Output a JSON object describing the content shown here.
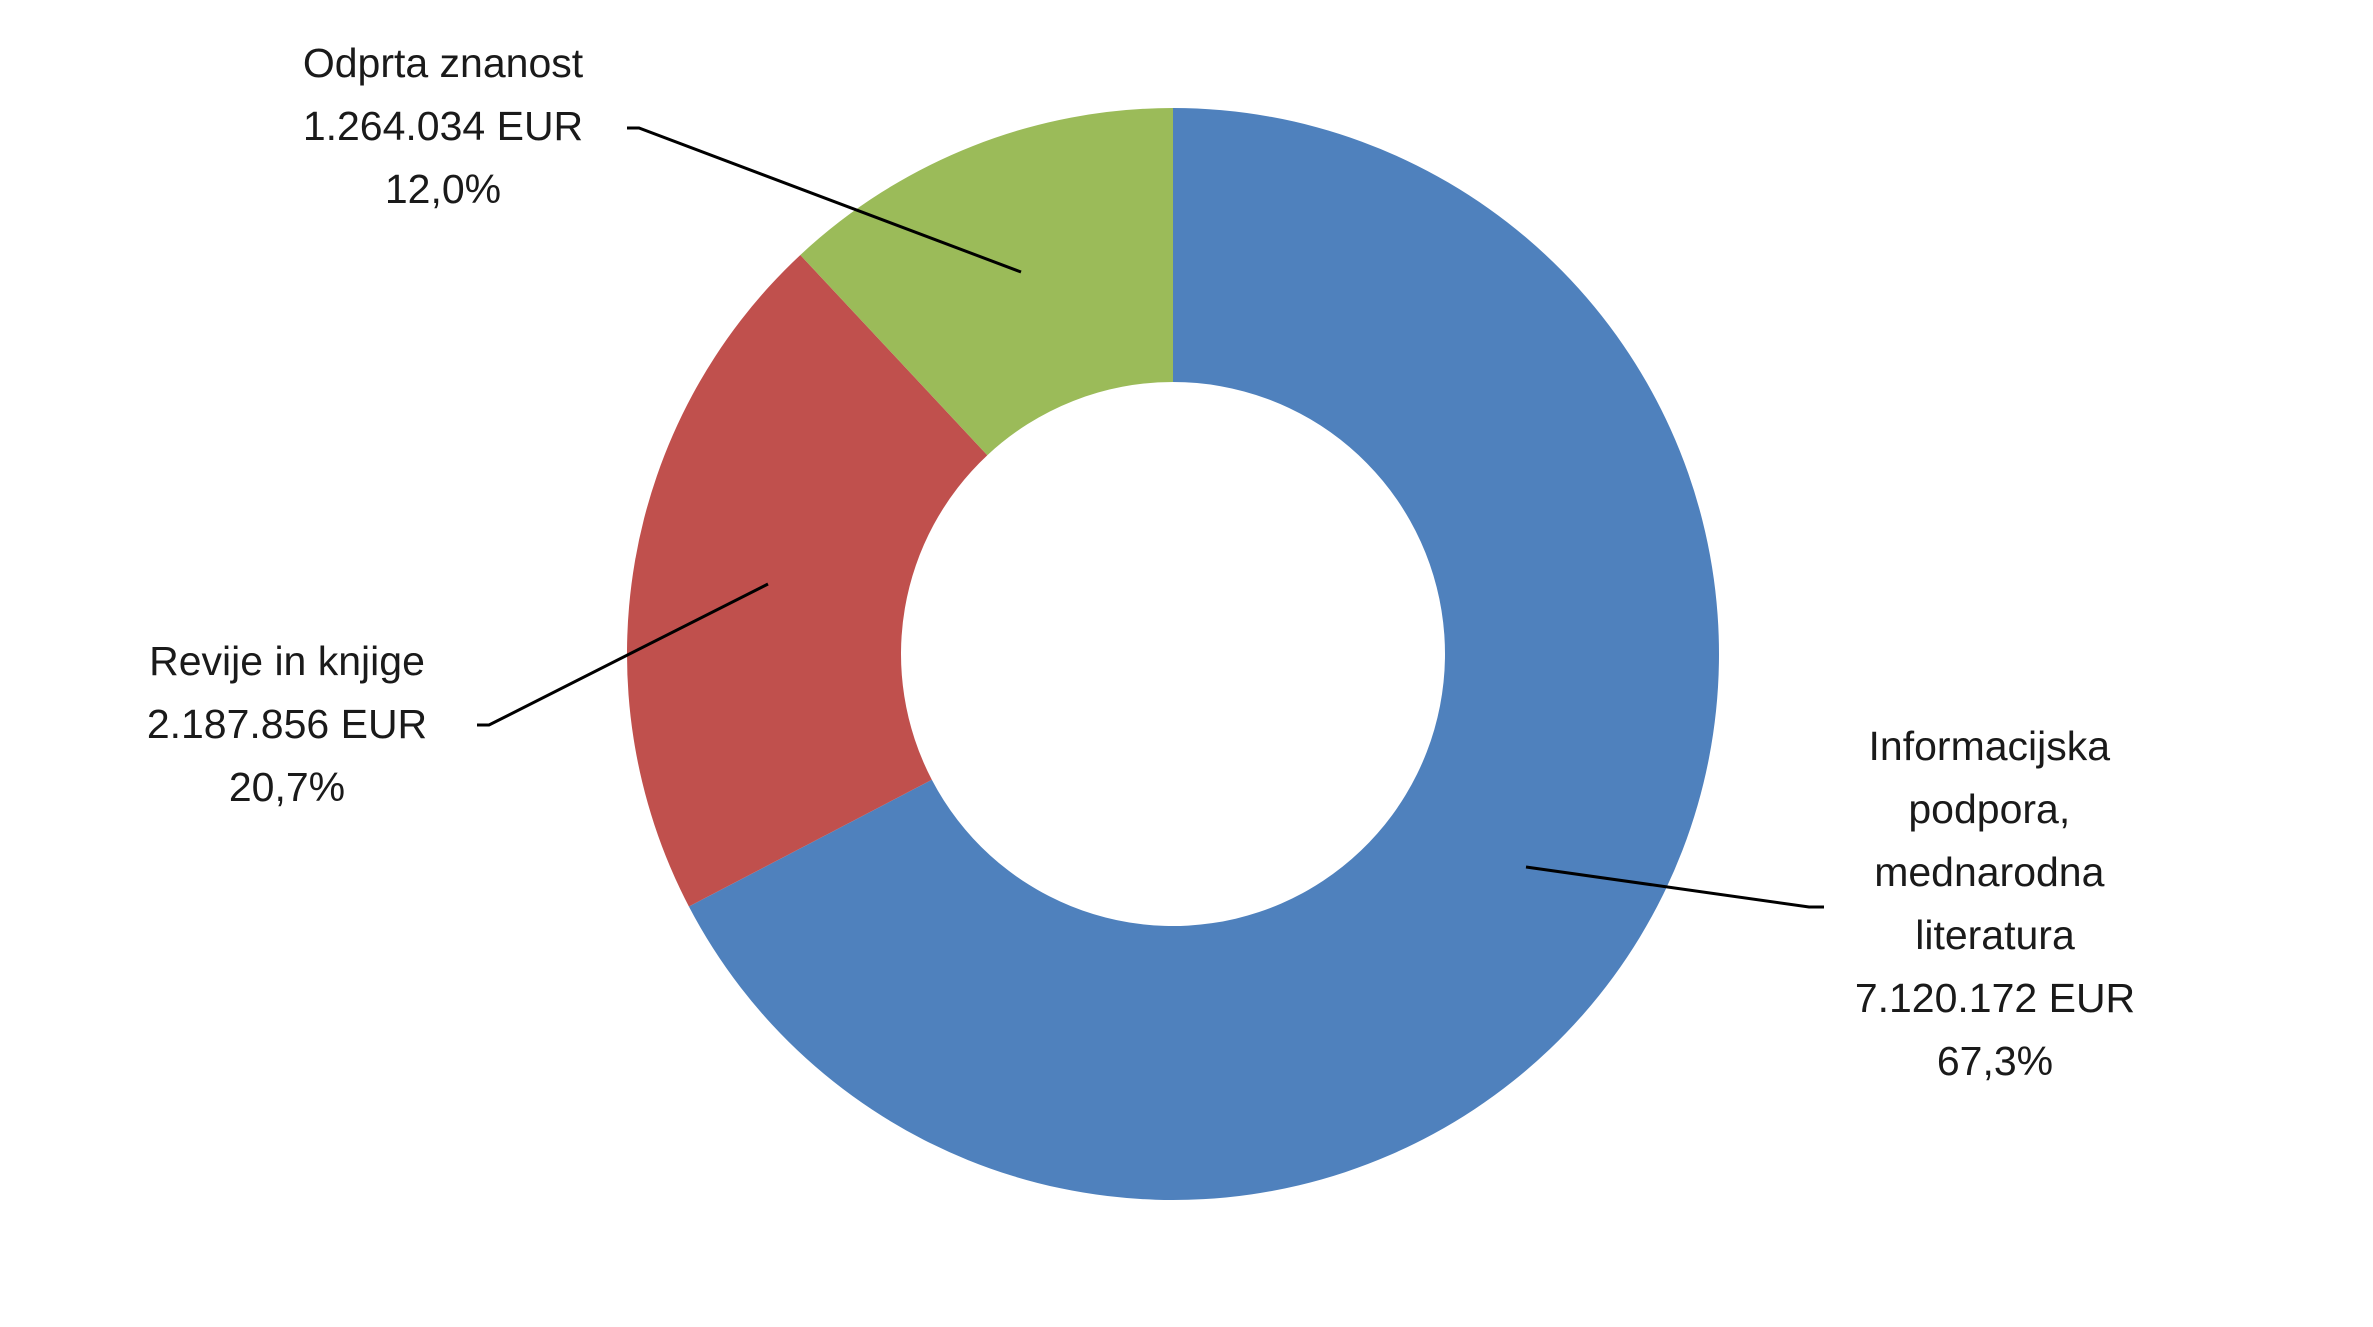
{
  "chart_data": {
    "type": "donut",
    "categories": [
      "Informacijska podpora, mednarodna literatura",
      "Revije in knjige",
      "Odprta znanost"
    ],
    "values": [
      7120172,
      2187856,
      1264034
    ],
    "value_labels": [
      "7.120.172 EUR",
      "2.187.856 EUR",
      "1.264.034 EUR"
    ],
    "percentages": [
      67.3,
      20.7,
      12.0
    ],
    "percentage_labels": [
      "67,3%",
      "20,7%",
      "12,0%"
    ],
    "colors": [
      "#4f81bd",
      "#c0504d",
      "#9bbb59"
    ]
  }
}
